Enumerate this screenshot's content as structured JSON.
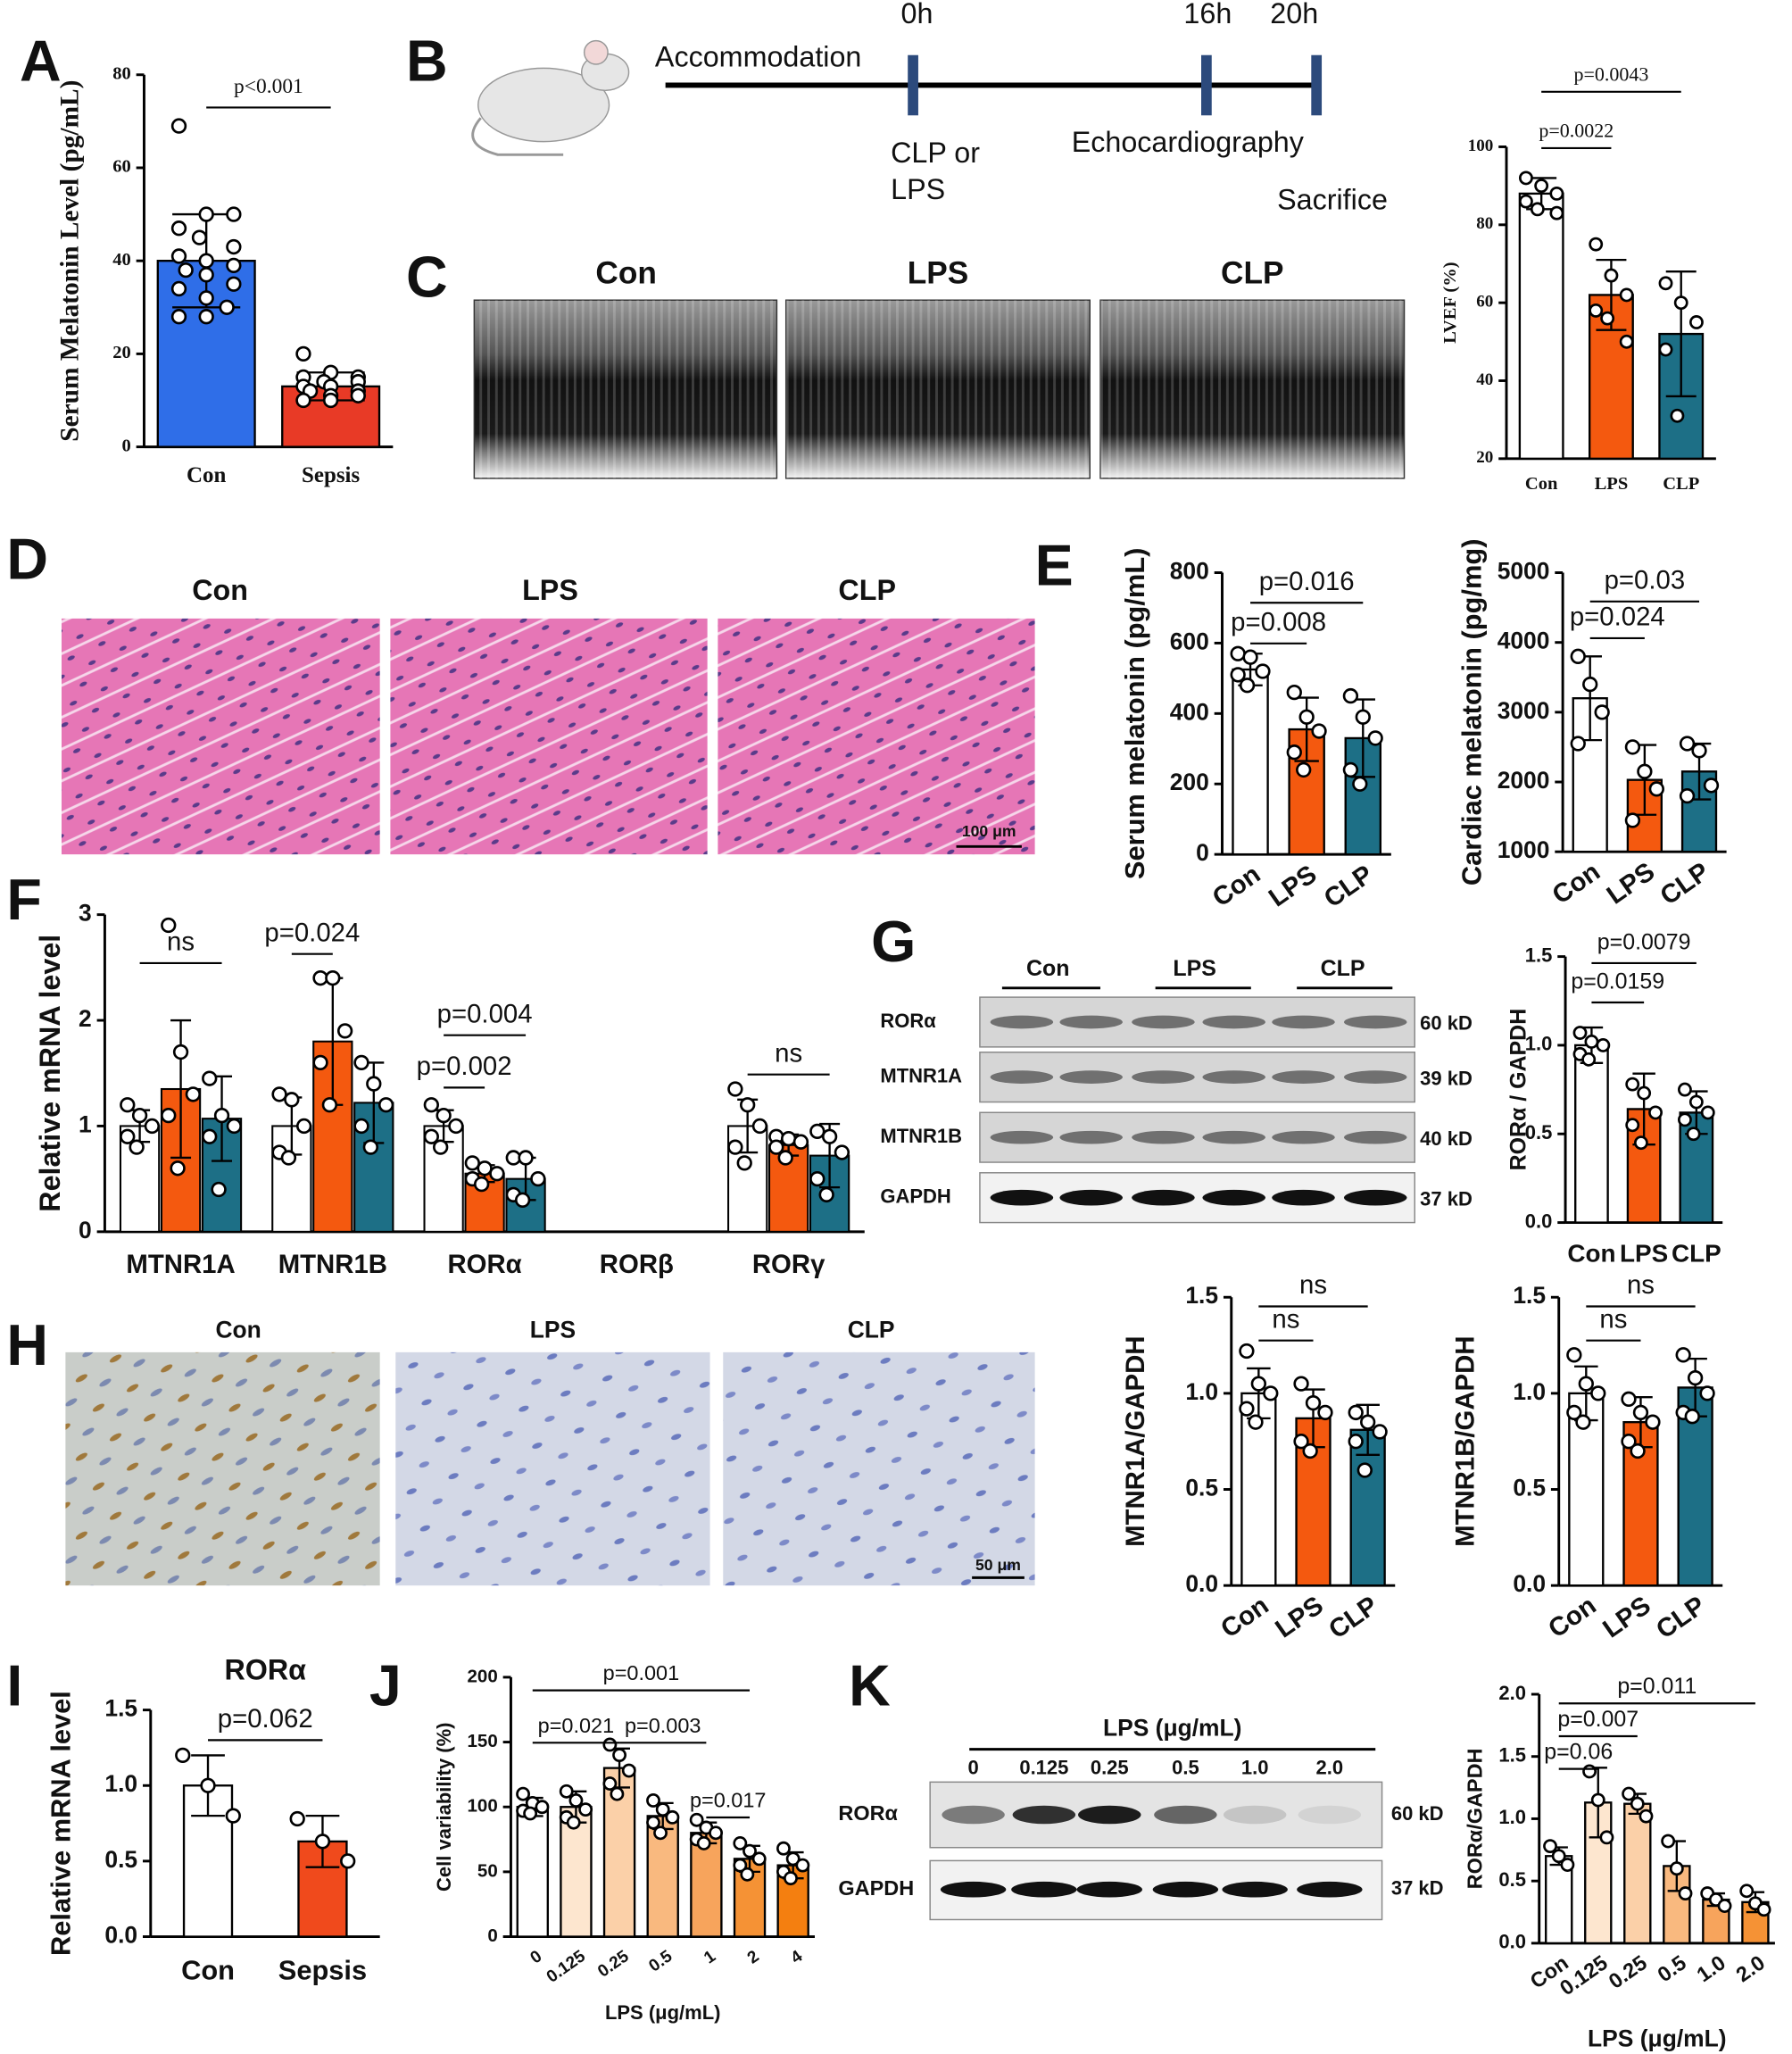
{
  "panels": [
    "A",
    "B",
    "C",
    "D",
    "E",
    "F",
    "G",
    "H",
    "I",
    "J",
    "K"
  ],
  "timeline": {
    "start": "Accommodation",
    "times": [
      "0h",
      "16h",
      "20h"
    ],
    "events": [
      "CLP or",
      "LPS",
      "Echocardiography",
      "Sacrifice"
    ]
  },
  "echo_labels": [
    "Con",
    "LPS",
    "CLP"
  ],
  "he_labels": [
    "Con",
    "LPS",
    "CLP"
  ],
  "he_scale": "100 μm",
  "ihc_labels": [
    "Con",
    "LPS",
    "CLP"
  ],
  "ihc_scale": "50 μm",
  "blot_g": {
    "groups": [
      "Con",
      "LPS",
      "CLP"
    ],
    "rows": [
      "RORα",
      "MTNR1A",
      "MTNR1B",
      "GAPDH"
    ],
    "sizes": [
      "60 kD",
      "39 kD",
      "40 kD",
      "37 kD"
    ]
  },
  "blot_k": {
    "title": "LPS (μg/mL)",
    "lanes": [
      "0",
      "0.125",
      "0.25",
      "0.5",
      "1.0",
      "2.0"
    ],
    "rows": [
      "RORα",
      "GAPDH"
    ],
    "sizes": [
      "60 kD",
      "37 kD"
    ]
  },
  "chart_data": [
    {
      "type": "bar",
      "ylabel": "Serum Melatonin Level (pg/mL)",
      "categories": [
        "Con",
        "Sepsis"
      ],
      "values": [
        40,
        13
      ],
      "errors": [
        10,
        3
      ],
      "points": [
        [
          69,
          50,
          50,
          47,
          45,
          43,
          41,
          40,
          39,
          38,
          37,
          35,
          34,
          32,
          30,
          28,
          28
        ],
        [
          20,
          16,
          15,
          15,
          14,
          14,
          13,
          13,
          12,
          12,
          11,
          11,
          10,
          10
        ]
      ],
      "colors": [
        "#2f6ee8",
        "#e83a26"
      ],
      "ylim": [
        0,
        80
      ],
      "yticks": [
        0,
        20,
        40,
        60,
        80
      ],
      "annotations": [
        {
          "text": "p<0.001",
          "between": [
            "Con",
            "Sepsis"
          ]
        }
      ]
    },
    {
      "type": "bar",
      "ylabel": "LVEF (%)",
      "categories": [
        "Con",
        "LPS",
        "CLP"
      ],
      "values": [
        88,
        62,
        52
      ],
      "errors": [
        4,
        9,
        16
      ],
      "points": [
        [
          92,
          90,
          88,
          86,
          84,
          83
        ],
        [
          75,
          67,
          62,
          58,
          56,
          50
        ],
        [
          65,
          60,
          55,
          48,
          31
        ]
      ],
      "colors": [
        "#ffffff",
        "#f4590f",
        "#1d6f86"
      ],
      "ylim": [
        20,
        100
      ],
      "yticks": [
        20,
        40,
        60,
        80,
        100
      ],
      "annotations": [
        {
          "text": "p=0.0022",
          "between": [
            "Con",
            "LPS"
          ]
        },
        {
          "text": "p=0.0043",
          "between": [
            "Con",
            "CLP"
          ]
        }
      ]
    },
    {
      "type": "bar",
      "ylabel": "Serum melatonin (pg/mL)",
      "categories": [
        "Con",
        "LPS",
        "CLP"
      ],
      "values": [
        525,
        355,
        330
      ],
      "errors": [
        45,
        90,
        110
      ],
      "points": [
        [
          570,
          560,
          520,
          510,
          480
        ],
        [
          460,
          390,
          350,
          290,
          240
        ],
        [
          450,
          390,
          330,
          240,
          200
        ]
      ],
      "colors": [
        "#ffffff",
        "#f4590f",
        "#1d6f86"
      ],
      "ylim": [
        0,
        800
      ],
      "yticks": [
        0,
        200,
        400,
        600,
        800
      ],
      "annotations": [
        {
          "text": "p=0.008",
          "between": [
            "Con",
            "LPS"
          ]
        },
        {
          "text": "p=0.016",
          "between": [
            "Con",
            "CLP"
          ]
        }
      ]
    },
    {
      "type": "bar",
      "ylabel": "Cardiac melatonin (pg/mg)",
      "categories": [
        "Con",
        "LPS",
        "CLP"
      ],
      "values": [
        3200,
        2030,
        2150
      ],
      "errors": [
        600,
        500,
        400
      ],
      "points": [
        [
          3800,
          3400,
          3000,
          2550
        ],
        [
          2500,
          2150,
          1900,
          1450
        ],
        [
          2550,
          2450,
          1950,
          1800
        ]
      ],
      "colors": [
        "#ffffff",
        "#f4590f",
        "#1d6f86"
      ],
      "ylim": [
        1000,
        5000
      ],
      "yticks": [
        1000,
        2000,
        3000,
        4000,
        5000
      ],
      "annotations": [
        {
          "text": "p=0.024",
          "between": [
            "Con",
            "LPS"
          ]
        },
        {
          "text": "p=0.03",
          "between": [
            "Con",
            "CLP"
          ]
        }
      ]
    },
    {
      "type": "grouped_bar",
      "ylabel": "Relative mRNA level",
      "categories": [
        "MTNR1A",
        "MTNR1B",
        "RORα",
        "RORβ",
        "RORγ"
      ],
      "ylim": [
        0,
        3
      ],
      "yticks": [
        0,
        1,
        2,
        3
      ],
      "series": [
        {
          "color": "#ffffff",
          "values": [
            1.0,
            1.0,
            1.0,
            null,
            1.0
          ],
          "errors": [
            0.15,
            0.27,
            0.15,
            null,
            0.25
          ],
          "points": [
            [
              1.2,
              1.1,
              1.0,
              0.9,
              0.8
            ],
            [
              1.3,
              1.25,
              1.0,
              0.75,
              0.7
            ],
            [
              1.2,
              1.1,
              1.0,
              0.9,
              0.8
            ],
            [],
            [
              1.35,
              1.2,
              1.0,
              0.8,
              0.65
            ]
          ]
        },
        {
          "color": "#f4590f",
          "values": [
            1.35,
            1.8,
            0.55,
            null,
            0.82
          ],
          "errors": [
            0.65,
            0.6,
            0.08,
            null,
            0.1
          ],
          "points": [
            [
              2.9,
              1.7,
              1.3,
              1.1,
              0.6
            ],
            [
              2.4,
              2.4,
              1.9,
              1.6,
              1.2
            ],
            [
              0.65,
              0.6,
              0.55,
              0.5,
              0.45
            ],
            [],
            [
              0.9,
              0.88,
              0.85,
              0.8,
              0.7
            ]
          ]
        },
        {
          "color": "#1d6f86",
          "values": [
            1.07,
            1.22,
            0.5,
            null,
            0.72
          ],
          "errors": [
            0.4,
            0.38,
            0.2,
            null,
            0.3
          ],
          "points": [
            [
              1.45,
              1.1,
              1.0,
              0.9,
              0.4
            ],
            [
              1.6,
              1.4,
              1.2,
              1.0,
              0.8
            ],
            [
              0.7,
              0.7,
              0.5,
              0.35,
              0.3
            ],
            [],
            [
              0.95,
              0.9,
              0.75,
              0.5,
              0.35
            ]
          ]
        }
      ],
      "annotations": [
        {
          "text": "ns",
          "group": "MTNR1A",
          "between": [
            0,
            2
          ]
        },
        {
          "text": "p=0.024",
          "group": "MTNR1B",
          "between": [
            0,
            1
          ]
        },
        {
          "text": "p=0.002",
          "group": "RORα",
          "between": [
            0,
            1
          ]
        },
        {
          "text": "p=0.004",
          "group": "RORα",
          "between": [
            0,
            2
          ]
        },
        {
          "text": "ns",
          "group": "RORγ",
          "between": [
            0,
            2
          ]
        }
      ]
    },
    {
      "type": "bar",
      "ylabel": "RORα / GAPDH",
      "categories": [
        "Con",
        "LPS",
        "CLP"
      ],
      "values": [
        1.0,
        0.64,
        0.62
      ],
      "errors": [
        0.1,
        0.2,
        0.12
      ],
      "points": [
        [
          1.07,
          1.02,
          1.0,
          0.95,
          0.92
        ],
        [
          0.78,
          0.73,
          0.62,
          0.55,
          0.45
        ],
        [
          0.75,
          0.68,
          0.62,
          0.58,
          0.5
        ]
      ],
      "colors": [
        "#ffffff",
        "#f4590f",
        "#1d6f86"
      ],
      "ylim": [
        0,
        1.5
      ],
      "yticks": [
        {
          "value": 0,
          "label": "0.0"
        },
        0.5,
        {
          "value": 1,
          "label": "1.0"
        },
        1.5
      ],
      "annotations": [
        {
          "text": "p=0.0159",
          "between": [
            "Con",
            "LPS"
          ]
        },
        {
          "text": "p=0.0079",
          "between": [
            "Con",
            "CLP"
          ]
        }
      ]
    },
    {
      "type": "bar",
      "ylabel": "MTNR1A/GAPDH",
      "categories": [
        "Con",
        "LPS",
        "CLP"
      ],
      "values": [
        1.0,
        0.87,
        0.81
      ],
      "errors": [
        0.13,
        0.15,
        0.13
      ],
      "points": [
        [
          1.22,
          1.05,
          1.0,
          0.92,
          0.85
        ],
        [
          1.05,
          0.95,
          0.9,
          0.75,
          0.7
        ],
        [
          0.9,
          0.85,
          0.8,
          0.75,
          0.6
        ]
      ],
      "colors": [
        "#ffffff",
        "#f4590f",
        "#1d6f86"
      ],
      "ylim": [
        0,
        1.5
      ],
      "yticks": [
        {
          "value": 0,
          "label": "0.0"
        },
        0.5,
        {
          "value": 1,
          "label": "1.0"
        },
        1.5
      ],
      "annotations": [
        {
          "text": "ns",
          "between": [
            "Con",
            "LPS"
          ]
        },
        {
          "text": "ns",
          "between": [
            "Con",
            "CLP"
          ]
        }
      ]
    },
    {
      "type": "bar",
      "ylabel": "MTNR1B/GAPDH",
      "categories": [
        "Con",
        "LPS",
        "CLP"
      ],
      "values": [
        1.0,
        0.85,
        1.03
      ],
      "errors": [
        0.14,
        0.13,
        0.15
      ],
      "points": [
        [
          1.2,
          1.05,
          1.0,
          0.9,
          0.85
        ],
        [
          0.97,
          0.9,
          0.85,
          0.75,
          0.7
        ],
        [
          1.2,
          1.08,
          1.0,
          0.9,
          0.88
        ]
      ],
      "colors": [
        "#ffffff",
        "#f4590f",
        "#1d6f86"
      ],
      "ylim": [
        0,
        1.5
      ],
      "yticks": [
        {
          "value": 0,
          "label": "0.0"
        },
        0.5,
        {
          "value": 1,
          "label": "1.0"
        },
        1.5
      ],
      "annotations": [
        {
          "text": "ns",
          "between": [
            "Con",
            "LPS"
          ]
        },
        {
          "text": "ns",
          "between": [
            "Con",
            "CLP"
          ]
        }
      ]
    },
    {
      "type": "bar",
      "title": "RORα",
      "ylabel": "Relative mRNA level",
      "categories": [
        "Con",
        "Sepsis"
      ],
      "values": [
        1.0,
        0.63
      ],
      "errors": [
        0.2,
        0.17
      ],
      "points": [
        [
          1.2,
          1.0,
          0.8
        ],
        [
          0.78,
          0.63,
          0.5
        ]
      ],
      "colors": [
        "#ffffff",
        "#f04a1c"
      ],
      "ylim": [
        0,
        1.5
      ],
      "yticks": [
        {
          "value": 0,
          "label": "0.0"
        },
        0.5,
        {
          "value": 1,
          "label": "1.0"
        },
        1.5
      ],
      "annotations": [
        {
          "text": "p=0.062",
          "between": [
            "Con",
            "Sepsis"
          ]
        }
      ]
    },
    {
      "type": "bar",
      "ylabel": "Cell variability (%)",
      "xlabel": "LPS (μg/mL)",
      "categories": [
        "0",
        "0.125",
        "0.25",
        "0.5",
        "1",
        "2",
        "4"
      ],
      "values": [
        100,
        100,
        130,
        93,
        80,
        60,
        55
      ],
      "errors": [
        7,
        12,
        15,
        10,
        8,
        10,
        10
      ],
      "points": [
        [
          110,
          103,
          100,
          97,
          95
        ],
        [
          112,
          105,
          98,
          92,
          88
        ],
        [
          148,
          140,
          128,
          118,
          110
        ],
        [
          105,
          98,
          92,
          88,
          80
        ],
        [
          90,
          84,
          80,
          75,
          72
        ],
        [
          72,
          66,
          60,
          55,
          48
        ],
        [
          68,
          60,
          55,
          50,
          45
        ]
      ],
      "colors": [
        "#ffffff",
        "#fde6cf",
        "#fbd0a8",
        "#f9b97f",
        "#f7a45c",
        "#f59235",
        "#f47f10"
      ],
      "ylim": [
        0,
        200
      ],
      "yticks": [
        0,
        50,
        100,
        150,
        200
      ],
      "annotations": [
        {
          "text": "p=0.021",
          "between": [
            "0",
            "0.25"
          ]
        },
        {
          "text": "p=0.003",
          "between": [
            "0.25",
            "1"
          ]
        },
        {
          "text": "p=0.017",
          "between": [
            "1",
            "2"
          ]
        },
        {
          "text": "p=0.001",
          "between": [
            "0",
            "2"
          ]
        }
      ]
    },
    {
      "type": "bar",
      "ylabel": "RORα/GAPDH",
      "xlabel": "LPS (μg/mL)",
      "categories": [
        "Con",
        "0.125",
        "0.25",
        "0.5",
        "1.0",
        "2.0"
      ],
      "values": [
        0.7,
        1.13,
        1.12,
        0.62,
        0.35,
        0.33
      ],
      "errors": [
        0.07,
        0.28,
        0.08,
        0.2,
        0.05,
        0.08
      ],
      "points": [
        [
          0.78,
          0.7,
          0.63
        ],
        [
          1.38,
          1.15,
          0.85
        ],
        [
          1.2,
          1.12,
          1.02
        ],
        [
          0.82,
          0.6,
          0.4
        ],
        [
          0.4,
          0.35,
          0.3
        ],
        [
          0.42,
          0.32,
          0.27
        ]
      ],
      "colors": [
        "#ffffff",
        "#fde6cf",
        "#fbd0a8",
        "#f9b97f",
        "#f7a45c",
        "#f59235"
      ],
      "ylim": [
        0,
        2
      ],
      "yticks": [
        {
          "value": 0,
          "label": "0.0"
        },
        0.5,
        {
          "value": 1,
          "label": "1.0"
        },
        1.5,
        {
          "value": 2,
          "label": "2.0"
        }
      ],
      "annotations": [
        {
          "text": "p=0.06",
          "between": [
            "Con",
            "0.125"
          ]
        },
        {
          "text": "p=0.007",
          "between": [
            "Con",
            "0.25"
          ]
        },
        {
          "text": "p=0.011",
          "between": [
            "Con",
            "2.0"
          ]
        }
      ]
    }
  ]
}
